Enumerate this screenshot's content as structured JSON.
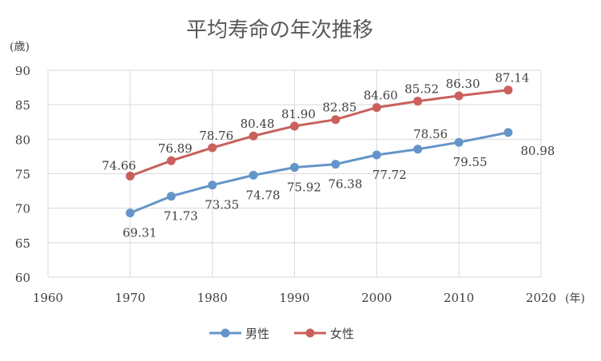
{
  "chart_data": {
    "type": "line",
    "title": "平均寿命の年次推移",
    "y_unit": "(歳)",
    "x_unit": "(年)",
    "xlim": [
      1960,
      2020
    ],
    "ylim": [
      60,
      90
    ],
    "x_ticks": [
      1960,
      1970,
      1980,
      1990,
      2000,
      2010,
      2020
    ],
    "y_ticks": [
      60,
      65,
      70,
      75,
      80,
      85,
      90
    ],
    "x_tick_labels": [
      "1960",
      "1970",
      "1980",
      "1990",
      "2000",
      "2010",
      "2020"
    ],
    "y_tick_labels": [
      "60",
      "65",
      "70",
      "75",
      "80",
      "85",
      "90"
    ],
    "grid": "both",
    "legend_position": "bottom",
    "series": [
      {
        "name": "男性",
        "color": "#6495c8",
        "x": [
          1970,
          1975,
          1980,
          1985,
          1990,
          1995,
          2000,
          2005,
          2010,
          2016
        ],
        "values": [
          69.31,
          71.73,
          73.35,
          74.78,
          75.92,
          76.38,
          77.72,
          78.56,
          79.55,
          80.98
        ],
        "labels": [
          "69.31",
          "71.73",
          "73.35",
          "74.78",
          "75.92",
          "76.38",
          "77.72",
          "78.56",
          "79.55",
          "80.98"
        ]
      },
      {
        "name": "女性",
        "color": "#c9605c",
        "x": [
          1970,
          1975,
          1980,
          1985,
          1990,
          1995,
          2000,
          2005,
          2010,
          2016
        ],
        "values": [
          74.66,
          76.89,
          78.76,
          80.48,
          81.9,
          82.85,
          84.6,
          85.52,
          86.3,
          87.14
        ],
        "labels": [
          "74.66",
          "76.89",
          "78.76",
          "80.48",
          "81.90",
          "82.85",
          "84.60",
          "85.52",
          "86.30",
          "87.14"
        ]
      }
    ]
  }
}
